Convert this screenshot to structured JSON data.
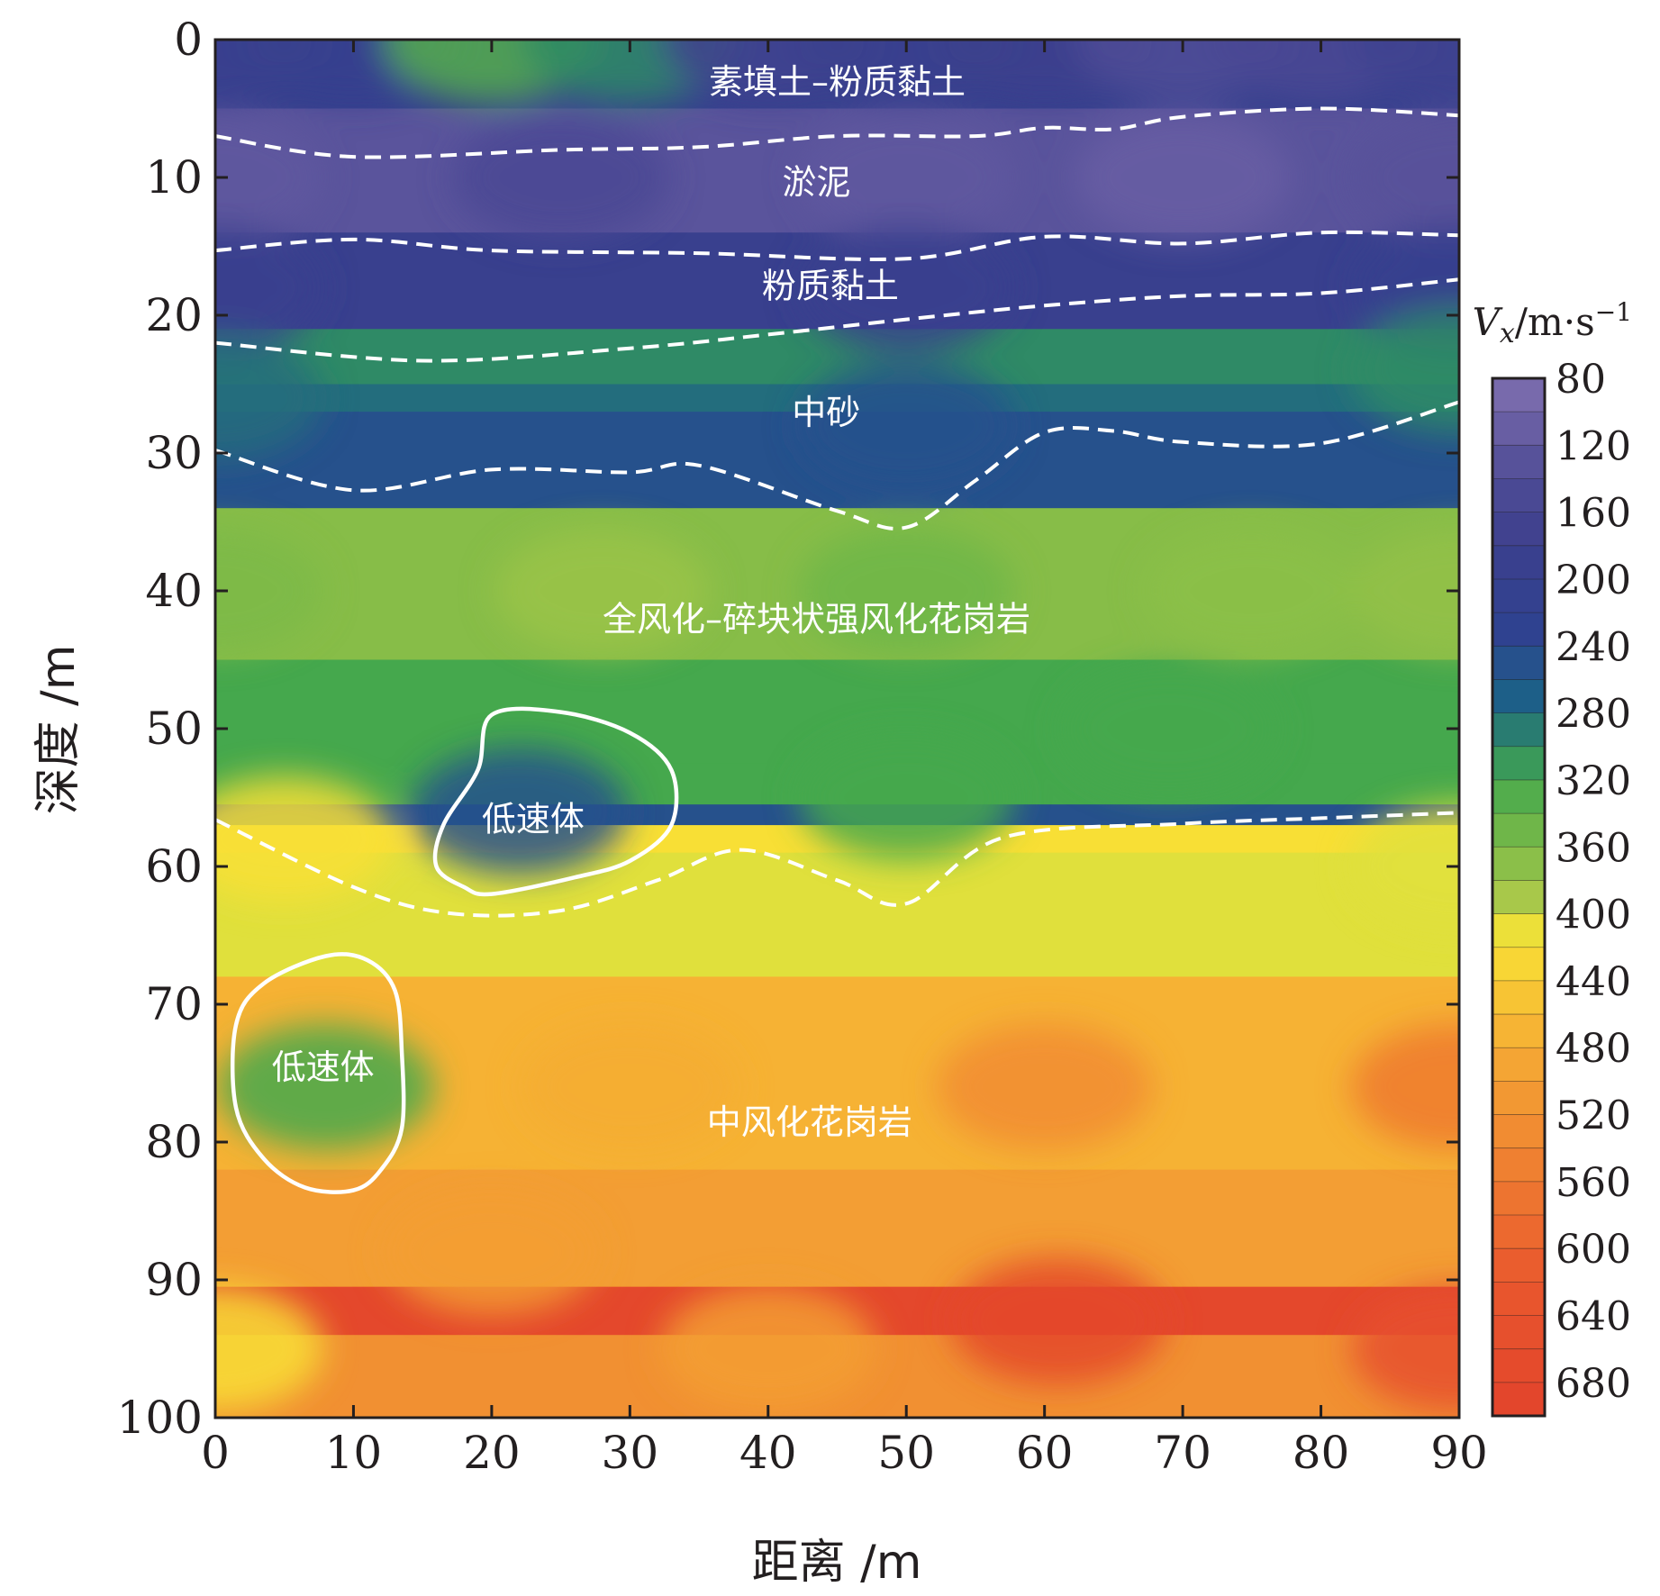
{
  "chart_data": {
    "type": "heatmap",
    "title": "",
    "xlabel": "距离 /m",
    "ylabel": "深度 /m",
    "xlim": [
      0,
      90
    ],
    "ylim": [
      0,
      100
    ],
    "y_inverted": true,
    "x_ticks": [
      0,
      10,
      20,
      30,
      40,
      50,
      60,
      70,
      80,
      90
    ],
    "y_ticks": [
      0,
      10,
      20,
      30,
      40,
      50,
      60,
      70,
      80,
      90,
      100
    ],
    "colorbar": {
      "title_var": "V",
      "title_sub": "x",
      "title_unit": "/m·s",
      "title_exp": "−1",
      "range": [
        80,
        700
      ],
      "step": 20,
      "ticks": [
        80,
        120,
        160,
        200,
        240,
        280,
        320,
        360,
        400,
        440,
        480,
        520,
        560,
        600,
        640,
        680
      ],
      "colors": [
        {
          "v": 80,
          "c": "#8070b0"
        },
        {
          "v": 140,
          "c": "#4f4c96"
        },
        {
          "v": 180,
          "c": "#3c3f8d"
        },
        {
          "v": 230,
          "c": "#2f4290"
        },
        {
          "v": 270,
          "c": "#1d5f88"
        },
        {
          "v": 300,
          "c": "#2f8a66"
        },
        {
          "v": 320,
          "c": "#45a84d"
        },
        {
          "v": 360,
          "c": "#7dba48"
        },
        {
          "v": 390,
          "c": "#a8c84a"
        },
        {
          "v": 400,
          "c": "#e0e03c"
        },
        {
          "v": 420,
          "c": "#f8df35"
        },
        {
          "v": 460,
          "c": "#f7bb34"
        },
        {
          "v": 500,
          "c": "#f39e34"
        },
        {
          "v": 560,
          "c": "#ee7a30"
        },
        {
          "v": 620,
          "c": "#e9572d"
        },
        {
          "v": 700,
          "c": "#e2432c"
        }
      ]
    },
    "grid": false,
    "layer_boundaries": [
      {
        "style": "dashed",
        "points": [
          [
            0,
            7
          ],
          [
            10,
            8.5
          ],
          [
            25,
            8
          ],
          [
            35,
            7.8
          ],
          [
            45,
            7
          ],
          [
            55,
            7
          ],
          [
            60,
            6.4
          ],
          [
            65,
            6.5
          ],
          [
            70,
            5.6
          ],
          [
            80,
            5
          ],
          [
            90,
            5.5
          ]
        ]
      },
      {
        "style": "dashed",
        "points": [
          [
            0,
            15.3
          ],
          [
            10,
            14.5
          ],
          [
            20,
            15.3
          ],
          [
            35,
            15.5
          ],
          [
            50,
            15.9
          ],
          [
            60,
            14.3
          ],
          [
            70,
            14.8
          ],
          [
            80,
            14
          ],
          [
            90,
            14.2
          ]
        ]
      },
      {
        "style": "dashed",
        "points": [
          [
            0,
            22
          ],
          [
            15,
            23.3
          ],
          [
            30,
            22.4
          ],
          [
            40,
            21.4
          ],
          [
            50,
            20.3
          ],
          [
            60,
            19.3
          ],
          [
            70,
            18.6
          ],
          [
            80,
            18.4
          ],
          [
            90,
            17.4
          ]
        ]
      },
      {
        "style": "dashed",
        "points": [
          [
            0,
            29.8
          ],
          [
            10,
            32.7
          ],
          [
            20,
            31.2
          ],
          [
            30,
            31.4
          ],
          [
            35,
            30.9
          ],
          [
            45,
            34.2
          ],
          [
            50,
            35.4
          ],
          [
            55,
            32
          ],
          [
            60,
            28.5
          ],
          [
            65,
            28.4
          ],
          [
            70,
            29.2
          ],
          [
            80,
            29.3
          ],
          [
            90,
            26.3
          ]
        ]
      },
      {
        "style": "dashed",
        "points": [
          [
            0,
            56.6
          ],
          [
            10,
            61.5
          ],
          [
            17,
            63.4
          ],
          [
            25,
            63.2
          ],
          [
            32,
            61
          ],
          [
            38,
            58.8
          ],
          [
            45,
            61
          ],
          [
            50,
            62.7
          ],
          [
            57,
            57.9
          ],
          [
            70,
            56.9
          ],
          [
            80,
            56.5
          ],
          [
            90,
            56.1
          ]
        ]
      }
    ],
    "low_velocity_zones": [
      {
        "label": "低速体",
        "points": [
          [
            20,
            49
          ],
          [
            25,
            48.8
          ],
          [
            30,
            50.3
          ],
          [
            33,
            53
          ],
          [
            33,
            57
          ],
          [
            30,
            59.6
          ],
          [
            26,
            60.8
          ],
          [
            20,
            62
          ],
          [
            18,
            61.5
          ],
          [
            16,
            60
          ],
          [
            16.5,
            57
          ],
          [
            19,
            53
          ]
        ]
      },
      {
        "label": "低速体",
        "points": [
          [
            8,
            66.5
          ],
          [
            11,
            66.8
          ],
          [
            13,
            69
          ],
          [
            13.5,
            73.5
          ],
          [
            13.5,
            79
          ],
          [
            12,
            82
          ],
          [
            10,
            83.5
          ],
          [
            6.5,
            83.3
          ],
          [
            3.5,
            81.2
          ],
          [
            1.5,
            77.5
          ],
          [
            1.5,
            71.5
          ],
          [
            3.5,
            68.5
          ]
        ]
      }
    ],
    "velocity_field_points": [
      {
        "x": 0,
        "y": 0,
        "v": 190
      },
      {
        "x": 10,
        "y": 0,
        "v": 200
      },
      {
        "x": 20,
        "y": 0,
        "v": 330
      },
      {
        "x": 30,
        "y": 0,
        "v": 300
      },
      {
        "x": 40,
        "y": 0,
        "v": 170
      },
      {
        "x": 50,
        "y": 0,
        "v": 190
      },
      {
        "x": 60,
        "y": 0,
        "v": 180
      },
      {
        "x": 70,
        "y": 0,
        "v": 140
      },
      {
        "x": 80,
        "y": 0,
        "v": 150
      },
      {
        "x": 90,
        "y": 0,
        "v": 170
      },
      {
        "x": 0,
        "y": 10,
        "v": 120
      },
      {
        "x": 25,
        "y": 10,
        "v": 150
      },
      {
        "x": 50,
        "y": 10,
        "v": 120
      },
      {
        "x": 70,
        "y": 10,
        "v": 110
      },
      {
        "x": 90,
        "y": 10,
        "v": 130
      },
      {
        "x": 0,
        "y": 18,
        "v": 190
      },
      {
        "x": 50,
        "y": 18,
        "v": 190
      },
      {
        "x": 90,
        "y": 18,
        "v": 200
      },
      {
        "x": 0,
        "y": 26,
        "v": 280
      },
      {
        "x": 50,
        "y": 28,
        "v": 250
      },
      {
        "x": 90,
        "y": 24,
        "v": 300
      },
      {
        "x": 0,
        "y": 40,
        "v": 360
      },
      {
        "x": 28,
        "y": 40,
        "v": 380
      },
      {
        "x": 50,
        "y": 40,
        "v": 350
      },
      {
        "x": 75,
        "y": 40,
        "v": 370
      },
      {
        "x": 90,
        "y": 40,
        "v": 375
      },
      {
        "x": 5,
        "y": 58,
        "v": 420
      },
      {
        "x": 22,
        "y": 56,
        "v": 250
      },
      {
        "x": 50,
        "y": 55,
        "v": 320
      },
      {
        "x": 69,
        "y": 50,
        "v": 320
      },
      {
        "x": 90,
        "y": 60,
        "v": 400
      },
      {
        "x": 8,
        "y": 76,
        "v": 320
      },
      {
        "x": 30,
        "y": 76,
        "v": 480
      },
      {
        "x": 60,
        "y": 76,
        "v": 530
      },
      {
        "x": 90,
        "y": 76,
        "v": 560
      },
      {
        "x": 0,
        "y": 95,
        "v": 420
      },
      {
        "x": 20,
        "y": 88,
        "v": 500
      },
      {
        "x": 40,
        "y": 95,
        "v": 500
      },
      {
        "x": 61,
        "y": 93,
        "v": 680
      },
      {
        "x": 90,
        "y": 95,
        "v": 650
      }
    ],
    "annotations": [
      {
        "text": "素填土–粉质黏土",
        "x": 45,
        "y": 3
      },
      {
        "text": "淤泥",
        "x": 43.5,
        "y": 10.3
      },
      {
        "text": "粉质黏土",
        "x": 44.5,
        "y": 17.8
      },
      {
        "text": "中砂",
        "x": 44.2,
        "y": 27
      },
      {
        "text": "全风化–碎块状强风化花岗岩",
        "x": 43.5,
        "y": 42
      },
      {
        "text": "低速体",
        "x": 23,
        "y": 56.5
      },
      {
        "text": "低速体",
        "x": 7.8,
        "y": 74.5
      },
      {
        "text": "中风化花岗岩",
        "x": 43,
        "y": 78.5
      }
    ]
  }
}
